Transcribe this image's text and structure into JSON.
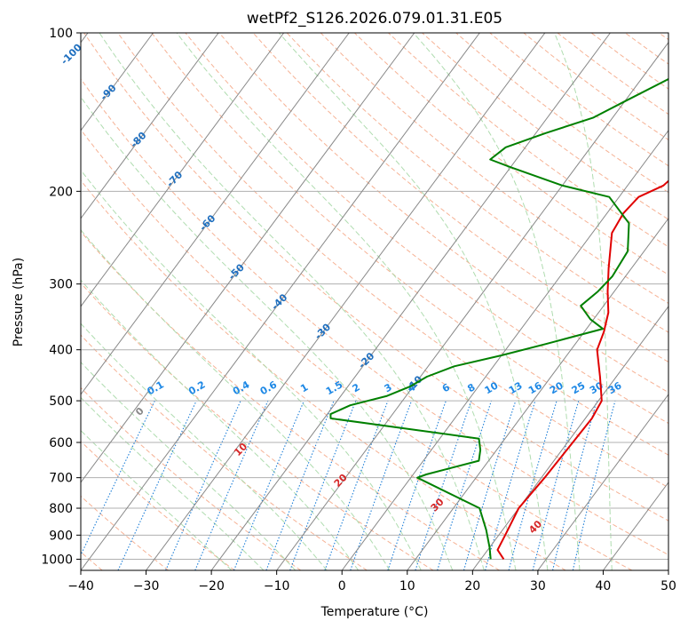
{
  "chart_data": {
    "type": "line",
    "title": "wetPf2_S126.2026.079.01.31.E05",
    "xlabel": "Temperature (°C)",
    "ylabel": "Pressure (hPa)",
    "xlim": [
      -40,
      50
    ],
    "ylim": [
      1050,
      100
    ],
    "yscale": "log",
    "x_ticks": [
      -40,
      -30,
      -20,
      -10,
      0,
      10,
      20,
      30,
      40,
      50
    ],
    "y_ticks": [
      100,
      200,
      300,
      400,
      500,
      600,
      700,
      800,
      900,
      1000
    ],
    "grid": true,
    "colors": {
      "temperature": "#e00000",
      "dewpoint": "#008000",
      "isotherm": "#888888",
      "dry_adiabat": "#f4a582",
      "moist_adiabat": "#a6d8a6",
      "mixing_ratio": "#1e7fd8",
      "isotherm_label": "#1f6fbf",
      "mixing_label": "#1e88e5",
      "theta_label": "#d62728"
    },
    "series": [
      {
        "name": "Temperature",
        "points": [
          {
            "t": 23.5,
            "p": 1000
          },
          {
            "t": 21.5,
            "p": 960
          },
          {
            "t": 21.0,
            "p": 900
          },
          {
            "t": 20.0,
            "p": 800
          },
          {
            "t": 20.5,
            "p": 700
          },
          {
            "t": 20.8,
            "p": 600
          },
          {
            "t": 21.0,
            "p": 540
          },
          {
            "t": 20.5,
            "p": 500
          },
          {
            "t": 17.5,
            "p": 450
          },
          {
            "t": 14.0,
            "p": 400
          },
          {
            "t": 13.0,
            "p": 370
          },
          {
            "t": 11.5,
            "p": 340
          },
          {
            "t": 9.0,
            "p": 310
          },
          {
            "t": 6.5,
            "p": 280
          },
          {
            "t": 3.0,
            "p": 240
          },
          {
            "t": 2.5,
            "p": 220
          },
          {
            "t": 3.0,
            "p": 205
          },
          {
            "t": 5.5,
            "p": 195
          },
          {
            "t": 6.5,
            "p": 180
          },
          {
            "t": 6.5,
            "p": 160
          },
          {
            "t": 6.0,
            "p": 140
          },
          {
            "t": 5.5,
            "p": 125
          },
          {
            "t": 5.5,
            "p": 115
          },
          {
            "t": 8.5,
            "p": 100
          }
        ]
      },
      {
        "name": "Dewpoint",
        "points": [
          {
            "t": 21.5,
            "p": 1000
          },
          {
            "t": 20.0,
            "p": 950
          },
          {
            "t": 17.5,
            "p": 880
          },
          {
            "t": 14.0,
            "p": 800
          },
          {
            "t": 1.0,
            "p": 700
          },
          {
            "t": 2.0,
            "p": 690
          },
          {
            "t": 8.5,
            "p": 650
          },
          {
            "t": 7.5,
            "p": 620
          },
          {
            "t": 6.0,
            "p": 590
          },
          {
            "t": -19.0,
            "p": 540
          },
          {
            "t": -19.5,
            "p": 530
          },
          {
            "t": -17.5,
            "p": 510
          },
          {
            "t": -13.0,
            "p": 490
          },
          {
            "t": -10.5,
            "p": 470
          },
          {
            "t": -9.0,
            "p": 450
          },
          {
            "t": -6.0,
            "p": 430
          },
          {
            "t": 0.0,
            "p": 410
          },
          {
            "t": 5.5,
            "p": 390
          },
          {
            "t": 12.5,
            "p": 365
          },
          {
            "t": 9.5,
            "p": 350
          },
          {
            "t": 6.5,
            "p": 330
          },
          {
            "t": 7.5,
            "p": 310
          },
          {
            "t": 8.0,
            "p": 290
          },
          {
            "t": 7.5,
            "p": 260
          },
          {
            "t": 4.5,
            "p": 230
          },
          {
            "t": -1.5,
            "p": 205
          },
          {
            "t": -10.0,
            "p": 195
          },
          {
            "t": -20.0,
            "p": 180
          },
          {
            "t": -24.0,
            "p": 174
          },
          {
            "t": -23.0,
            "p": 165
          },
          {
            "t": -18.5,
            "p": 155
          },
          {
            "t": -13.0,
            "p": 145
          },
          {
            "t": -10.0,
            "p": 135
          },
          {
            "t": -5.0,
            "p": 120
          },
          {
            "t": 0.5,
            "p": 110
          },
          {
            "t": 0.0,
            "p": 100
          }
        ]
      }
    ],
    "isotherm_labels": [
      "-100",
      "-90",
      "-80",
      "-70",
      "-60",
      "-50",
      "-40",
      "-30",
      "-20",
      "-10",
      "0",
      "10",
      "20",
      "30",
      "40"
    ],
    "mixing_ratio_labels": [
      "0.1",
      "0.2",
      "0.4",
      "0.6",
      "1",
      "1.5",
      "2",
      "3",
      "4",
      "6",
      "8",
      "10",
      "13",
      "16",
      "20",
      "25",
      "30",
      "36"
    ]
  }
}
